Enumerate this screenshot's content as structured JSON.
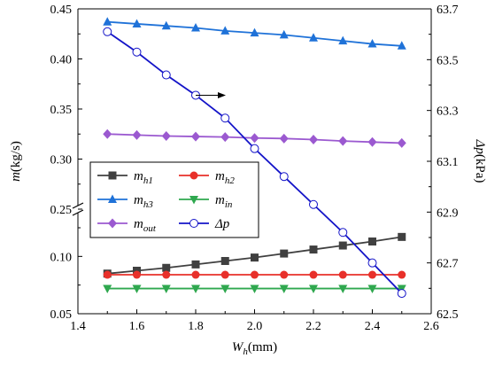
{
  "chart_data": {
    "type": "line",
    "xlabel": "W_h(mm)",
    "xlabel_parts": {
      "base": "W",
      "sub": "h",
      "unit": "(mm)"
    },
    "ylabel": "m(kg/s)",
    "ylabel_parts": {
      "base": "m",
      "unit": "(kg/s)"
    },
    "y2label": "Δp(kPa)",
    "y2label_parts": {
      "base": "Δp",
      "unit": "(kPa)"
    },
    "xlim": [
      1.4,
      2.6
    ],
    "x_ticks": [
      "1.4",
      "1.6",
      "1.8",
      "2.0",
      "2.2",
      "2.4",
      "2.6"
    ],
    "y_axis_broken": true,
    "ylim_lower": [
      0.05,
      0.125
    ],
    "ylim_upper": [
      0.25,
      0.45
    ],
    "y_ticks_lower": [
      "0.05",
      "0.10"
    ],
    "y_ticks_upper": [
      "0.25",
      "0.30",
      "0.35",
      "0.40",
      "0.45"
    ],
    "y2lim": [
      62.5,
      63.7
    ],
    "y2_ticks": [
      "62.5",
      "62.7",
      "62.9",
      "63.1",
      "63.3",
      "63.5",
      "63.7"
    ],
    "x": [
      1.5,
      1.6,
      1.7,
      1.8,
      1.9,
      2.0,
      2.1,
      2.2,
      2.3,
      2.4,
      2.5
    ],
    "series": [
      {
        "name": "m_h1",
        "label_base": "m",
        "label_sub": "h1",
        "axis": "left",
        "color": "#404040",
        "marker": "square",
        "values": [
          0.085,
          0.0875,
          0.09,
          0.093,
          0.096,
          0.099,
          0.1025,
          0.106,
          0.1095,
          0.113,
          0.117
        ]
      },
      {
        "name": "m_h2",
        "label_base": "m",
        "label_sub": "h2",
        "axis": "left",
        "color": "#e8302a",
        "marker": "circle",
        "values": [
          0.084,
          0.084,
          0.084,
          0.084,
          0.084,
          0.084,
          0.084,
          0.084,
          0.084,
          0.084,
          0.084
        ]
      },
      {
        "name": "m_h3",
        "label_base": "m",
        "label_sub": "h3",
        "axis": "left",
        "color": "#1f72d8",
        "marker": "triangle-up",
        "values": [
          0.437,
          0.435,
          0.433,
          0.431,
          0.428,
          0.426,
          0.424,
          0.421,
          0.418,
          0.415,
          0.413
        ]
      },
      {
        "name": "m_in",
        "label_base": "m",
        "label_sub": "in",
        "axis": "left",
        "color": "#2fa84f",
        "marker": "triangle-down",
        "values": [
          0.072,
          0.072,
          0.072,
          0.072,
          0.072,
          0.072,
          0.072,
          0.072,
          0.072,
          0.072,
          0.072
        ]
      },
      {
        "name": "m_out",
        "label_base": "m",
        "label_sub": "out",
        "axis": "left",
        "color": "#9b59d0",
        "marker": "diamond",
        "values": [
          0.325,
          0.324,
          0.323,
          0.3225,
          0.322,
          0.321,
          0.3205,
          0.3195,
          0.318,
          0.317,
          0.316
        ]
      },
      {
        "name": "Δp",
        "label_base": "Δp",
        "label_sub": "",
        "axis": "right",
        "color": "#1414c8",
        "marker": "circle-open",
        "values": [
          63.61,
          63.53,
          63.44,
          63.36,
          63.27,
          63.15,
          63.04,
          62.93,
          62.82,
          62.7,
          62.58
        ]
      }
    ],
    "annotations": [
      {
        "type": "arrow",
        "direction": "right",
        "points_to_axis": "right",
        "at_x": 1.8,
        "at_y2": 63.36
      }
    ],
    "legend_location": "lower-left",
    "grid": false
  }
}
